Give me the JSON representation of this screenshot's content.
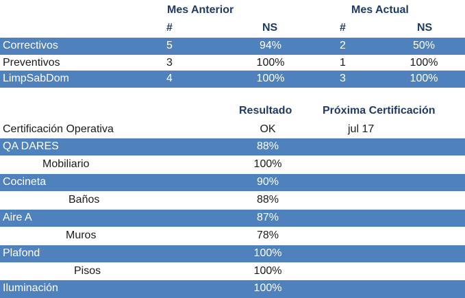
{
  "table1": {
    "group_headers": {
      "prev_month": "Mes Anterior",
      "curr_month": "Mes Actual"
    },
    "sub_headers": {
      "prev_count": "#",
      "prev_ns": "NS",
      "curr_count": "#",
      "curr_ns": "NS"
    },
    "rows": [
      {
        "label": "Correctivos",
        "prev_count": "5",
        "prev_ns": "94%",
        "curr_count": "2",
        "curr_ns": "50%",
        "highlight": true
      },
      {
        "label": "Preventivos",
        "prev_count": "3",
        "prev_ns": "100%",
        "curr_count": "1",
        "curr_ns": "100%",
        "highlight": false
      },
      {
        "label": "LimpSabDom",
        "prev_count": "4",
        "prev_ns": "100%",
        "curr_count": "3",
        "curr_ns": "100%",
        "highlight": true
      }
    ]
  },
  "table2": {
    "headers": {
      "result": "Resultado",
      "next_cert": "Próxima Certificación"
    },
    "summary": {
      "label": "Certificación Operativa",
      "result": "OK",
      "next_cert": "jul 17"
    },
    "rows": [
      {
        "label": "QA DARES",
        "value": "88%",
        "highlight": true
      },
      {
        "label": "Mobiliario",
        "value": "100%",
        "highlight": false
      },
      {
        "label": "Cocineta",
        "value": "90%",
        "highlight": true
      },
      {
        "label": "Baños",
        "value": "88%",
        "highlight": false
      },
      {
        "label": "Aire A",
        "value": "87%",
        "highlight": true
      },
      {
        "label": "Muros",
        "value": "78%",
        "highlight": false
      },
      {
        "label": "Plafond",
        "value": "100%",
        "highlight": true
      },
      {
        "label": "Pisos",
        "value": "100%",
        "highlight": false
      },
      {
        "label": "Iluminación",
        "value": "100%",
        "highlight": true
      }
    ]
  },
  "colors": {
    "band": "#4f81bd",
    "header_text": "#1f3a64"
  }
}
